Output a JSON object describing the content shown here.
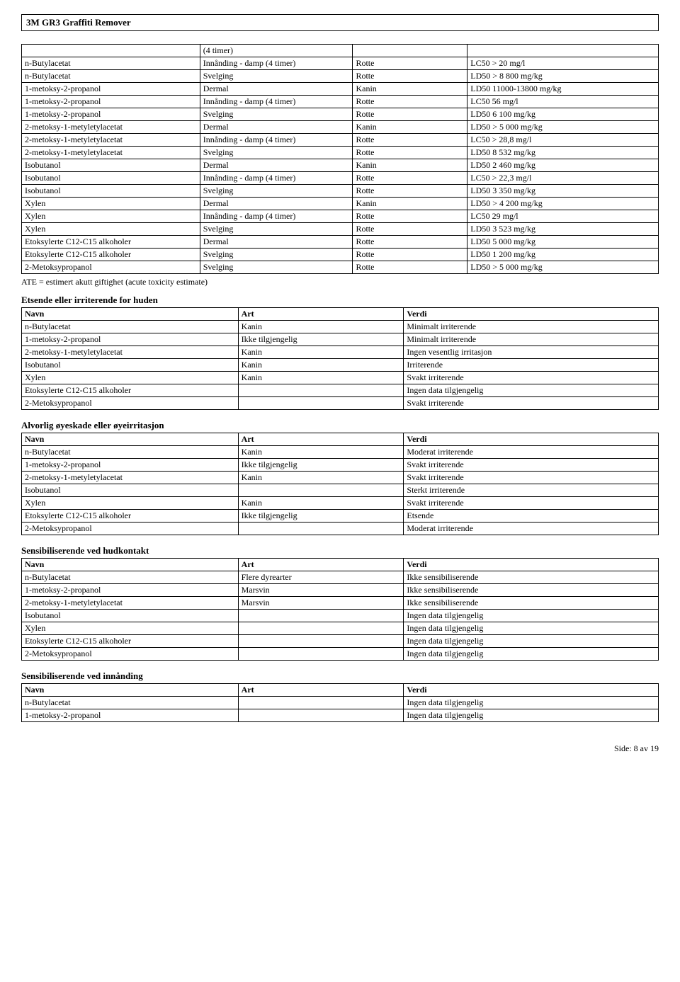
{
  "header": {
    "title": "3M GR3 Graffiti Remover"
  },
  "table1": {
    "rows": [
      [
        "",
        "(4 timer)",
        "",
        ""
      ],
      [
        "n-Butylacetat",
        "Innånding - damp (4 timer)",
        "Rotte",
        "LC50 > 20 mg/l"
      ],
      [
        "n-Butylacetat",
        "Svelging",
        "Rotte",
        "LD50 > 8 800 mg/kg"
      ],
      [
        "1-metoksy-2-propanol",
        "Dermal",
        "Kanin",
        "LD50  11000-13800 mg/kg"
      ],
      [
        "1-metoksy-2-propanol",
        "Innånding - damp (4 timer)",
        "Rotte",
        "LC50  56 mg/l"
      ],
      [
        "1-metoksy-2-propanol",
        "Svelging",
        "Rotte",
        "LD50  6 100 mg/kg"
      ],
      [
        "2-metoksy-1-metyletylacetat",
        "Dermal",
        "Kanin",
        "LD50 > 5 000 mg/kg"
      ],
      [
        "2-metoksy-1-metyletylacetat",
        "Innånding - damp (4 timer)",
        "Rotte",
        "LC50 > 28,8 mg/l"
      ],
      [
        "2-metoksy-1-metyletylacetat",
        "Svelging",
        "Rotte",
        "LD50  8 532 mg/kg"
      ],
      [
        "Isobutanol",
        "Dermal",
        "Kanin",
        "LD50  2 460 mg/kg"
      ],
      [
        "Isobutanol",
        "Innånding - damp (4 timer)",
        "Rotte",
        "LC50 > 22,3 mg/l"
      ],
      [
        "Isobutanol",
        "Svelging",
        "Rotte",
        "LD50  3 350 mg/kg"
      ],
      [
        "Xylen",
        "Dermal",
        "Kanin",
        "LD50 > 4 200 mg/kg"
      ],
      [
        "Xylen",
        "Innånding - damp (4 timer)",
        "Rotte",
        "LC50  29 mg/l"
      ],
      [
        "Xylen",
        "Svelging",
        "Rotte",
        "LD50  3 523 mg/kg"
      ],
      [
        "Etoksylerte C12-C15 alkoholer",
        "Dermal",
        "Rotte",
        "LD50  5 000 mg/kg"
      ],
      [
        "Etoksylerte C12-C15 alkoholer",
        "Svelging",
        "Rotte",
        "LD50  1 200 mg/kg"
      ],
      [
        "2-Metoksypropanol",
        "Svelging",
        "Rotte",
        "LD50 > 5 000 mg/kg"
      ]
    ],
    "note": "ATE = estimert akutt giftighet (acute toxicity estimate)"
  },
  "sections": [
    {
      "title": "Etsende eller irriterende for huden",
      "header": [
        "Navn",
        "Art",
        "Verdi"
      ],
      "rows": [
        [
          "n-Butylacetat",
          "Kanin",
          "Minimalt irriterende"
        ],
        [
          "1-metoksy-2-propanol",
          "Ikke tilgjengelig",
          "Minimalt irriterende"
        ],
        [
          "2-metoksy-1-metyletylacetat",
          "Kanin",
          "Ingen vesentlig irritasjon"
        ],
        [
          "Isobutanol",
          "Kanin",
          "Irriterende"
        ],
        [
          "Xylen",
          "Kanin",
          "Svakt irriterende"
        ],
        [
          "Etoksylerte C12-C15 alkoholer",
          "",
          "Ingen data tilgjengelig"
        ],
        [
          "2-Metoksypropanol",
          "",
          "Svakt irriterende"
        ]
      ]
    },
    {
      "title": "Alvorlig øyeskade eller øyeirritasjon",
      "header": [
        "Navn",
        "Art",
        "Verdi"
      ],
      "rows": [
        [
          "n-Butylacetat",
          "Kanin",
          "Moderat irriterende"
        ],
        [
          "1-metoksy-2-propanol",
          "Ikke tilgjengelig",
          "Svakt irriterende"
        ],
        [
          "2-metoksy-1-metyletylacetat",
          "Kanin",
          "Svakt irriterende"
        ],
        [
          "Isobutanol",
          "",
          "Sterkt irriterende"
        ],
        [
          "Xylen",
          "Kanin",
          "Svakt irriterende"
        ],
        [
          "Etoksylerte C12-C15 alkoholer",
          "Ikke tilgjengelig",
          "Etsende"
        ],
        [
          "2-Metoksypropanol",
          "",
          "Moderat irriterende"
        ]
      ]
    },
    {
      "title": "Sensibiliserende ved hudkontakt",
      "header": [
        "Navn",
        "Art",
        "Verdi"
      ],
      "rows": [
        [
          "n-Butylacetat",
          "Flere dyrearter",
          "Ikke sensibiliserende"
        ],
        [
          "1-metoksy-2-propanol",
          "Marsvin",
          "Ikke sensibiliserende"
        ],
        [
          "2-metoksy-1-metyletylacetat",
          "Marsvin",
          "Ikke sensibiliserende"
        ],
        [
          "Isobutanol",
          "",
          "Ingen data tilgjengelig"
        ],
        [
          "Xylen",
          "",
          "Ingen data tilgjengelig"
        ],
        [
          "Etoksylerte C12-C15 alkoholer",
          "",
          "Ingen data tilgjengelig"
        ],
        [
          "2-Metoksypropanol",
          "",
          "Ingen data tilgjengelig"
        ]
      ]
    },
    {
      "title": "Sensibiliserende ved innånding",
      "header": [
        "Navn",
        "Art",
        "Verdi"
      ],
      "rows": [
        [
          "n-Butylacetat",
          "",
          "Ingen data tilgjengelig"
        ],
        [
          "1-metoksy-2-propanol",
          "",
          "Ingen data tilgjengelig"
        ]
      ]
    }
  ],
  "footer": {
    "text": "Side: 8 av  19"
  }
}
